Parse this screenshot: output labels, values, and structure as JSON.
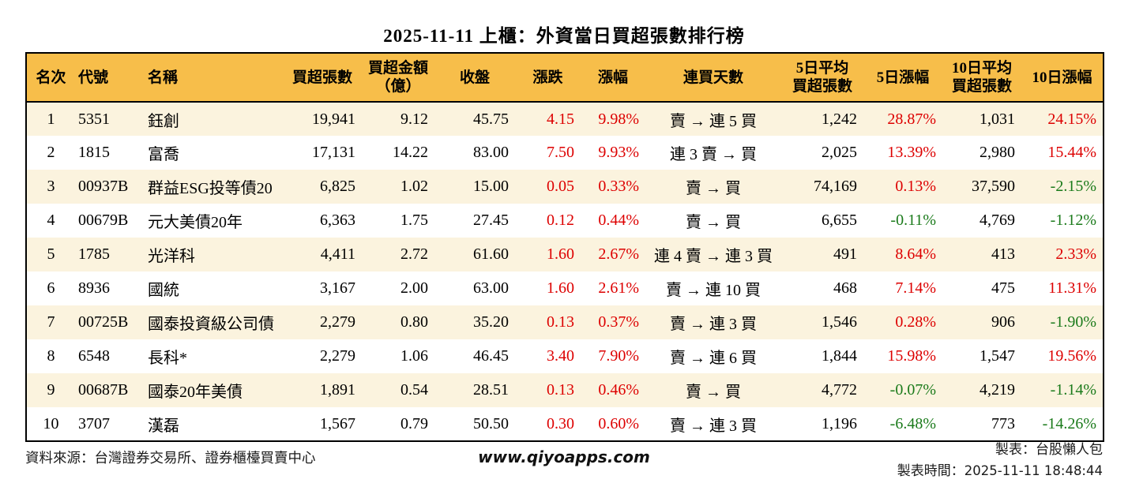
{
  "title": "2025-11-11 上櫃：外資當日買超張數排行榜",
  "colors": {
    "header_bg": "#F7BE4A",
    "row_alt_bg": "#FBF3DE",
    "row_bg": "#FFFFFF",
    "up_red": "#DD0000",
    "down_green": "#1A7A1A",
    "border": "#000000"
  },
  "chart_data": {
    "type": "table",
    "title": "2025-11-11 上櫃：外資當日買超張數排行榜",
    "column_keys": [
      "rank",
      "code",
      "name",
      "net_buy_lots",
      "net_buy_amount",
      "close",
      "change",
      "change_pct",
      "streak",
      "avg5_lots",
      "pct5",
      "avg10_lots",
      "pct10"
    ],
    "columns": [
      "名次",
      "代號",
      "名稱",
      "買超張數",
      "買超金額\n（億）",
      "收盤",
      "漲跌",
      "漲幅",
      "連買天數",
      "5日平均\n買超張數",
      "5日漲幅",
      "10日平均\n買超張數",
      "10日漲幅"
    ],
    "rows": [
      [
        "1",
        "5351",
        "鈺創",
        "19,941",
        "9.12",
        "45.75",
        "4.15",
        "9.98%",
        "賣 → 連 5 買",
        "1,242",
        "28.87%",
        "1,031",
        "24.15%"
      ],
      [
        "2",
        "1815",
        "富喬",
        "17,131",
        "14.22",
        "83.00",
        "7.50",
        "9.93%",
        "連 3 賣 → 買",
        "2,025",
        "13.39%",
        "2,980",
        "15.44%"
      ],
      [
        "3",
        "00937B",
        "群益ESG投等債20",
        "6,825",
        "1.02",
        "15.00",
        "0.05",
        "0.33%",
        "賣 → 買",
        "74,169",
        "0.13%",
        "37,590",
        "-2.15%"
      ],
      [
        "4",
        "00679B",
        "元大美債20年",
        "6,363",
        "1.75",
        "27.45",
        "0.12",
        "0.44%",
        "賣 → 買",
        "6,655",
        "-0.11%",
        "4,769",
        "-1.12%"
      ],
      [
        "5",
        "1785",
        "光洋科",
        "4,411",
        "2.72",
        "61.60",
        "1.60",
        "2.67%",
        "連 4 賣 → 連 3 買",
        "491",
        "8.64%",
        "413",
        "2.33%"
      ],
      [
        "6",
        "8936",
        "國統",
        "3,167",
        "2.00",
        "63.00",
        "1.60",
        "2.61%",
        "賣 → 連 10 買",
        "468",
        "7.14%",
        "475",
        "11.31%"
      ],
      [
        "7",
        "00725B",
        "國泰投資級公司債",
        "2,279",
        "0.80",
        "35.20",
        "0.13",
        "0.37%",
        "賣 → 連 3 買",
        "1,546",
        "0.28%",
        "906",
        "-1.90%"
      ],
      [
        "8",
        "6548",
        "長科*",
        "2,279",
        "1.06",
        "46.45",
        "3.40",
        "7.90%",
        "賣 → 連 6 買",
        "1,844",
        "15.98%",
        "1,547",
        "19.56%"
      ],
      [
        "9",
        "00687B",
        "國泰20年美債",
        "1,891",
        "0.54",
        "28.51",
        "0.13",
        "0.46%",
        "賣 → 買",
        "4,772",
        "-0.07%",
        "4,219",
        "-1.14%"
      ],
      [
        "10",
        "3707",
        "漢磊",
        "1,567",
        "0.79",
        "50.50",
        "0.30",
        "0.60%",
        "賣 → 連 3 買",
        "1,196",
        "-6.48%",
        "773",
        "-14.26%"
      ]
    ]
  },
  "footer": {
    "source": "資料來源：台灣證券交易所、證券櫃檯買賣中心",
    "website": "www.qiyoapps.com",
    "maker": "製表：台股懶人包",
    "time_label": "製表時間：",
    "time_value": "2025-11-11 18:48:44"
  }
}
